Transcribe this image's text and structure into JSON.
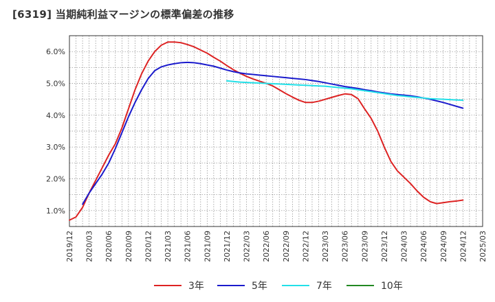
{
  "title": "[6319]  当期純利益マージンの標準偏差の推移",
  "chart_data": {
    "type": "line",
    "title": "[6319]  当期純利益マージンの標準偏差の推移",
    "xlabel": "",
    "ylabel": "",
    "x_ticks": [
      "2019/12",
      "2020/03",
      "2020/06",
      "2020/09",
      "2020/12",
      "2021/03",
      "2021/06",
      "2021/09",
      "2021/12",
      "2022/03",
      "2022/06",
      "2022/09",
      "2022/12",
      "2023/03",
      "2023/06",
      "2023/09",
      "2023/12",
      "2024/03",
      "2024/06",
      "2024/09",
      "2024/12",
      "2025/03"
    ],
    "y_ticks": [
      "1.0%",
      "2.0%",
      "3.0%",
      "4.0%",
      "5.0%",
      "6.0%"
    ],
    "ylim": [
      0.5,
      6.5
    ],
    "y_unit": "%",
    "grid": true,
    "legend_position": "bottom",
    "series": [
      {
        "name": "3年",
        "color": "#dd2222",
        "points": [
          [
            "2019/12",
            0.7
          ],
          [
            "2020/01",
            0.8
          ],
          [
            "2020/02",
            1.1
          ],
          [
            "2020/03",
            1.55
          ],
          [
            "2020/04",
            1.95
          ],
          [
            "2020/05",
            2.35
          ],
          [
            "2020/06",
            2.75
          ],
          [
            "2020/07",
            3.1
          ],
          [
            "2020/08",
            3.6
          ],
          [
            "2020/09",
            4.2
          ],
          [
            "2020/10",
            4.8
          ],
          [
            "2020/11",
            5.3
          ],
          [
            "2020/12",
            5.7
          ],
          [
            "2021/01",
            6.0
          ],
          [
            "2021/02",
            6.2
          ],
          [
            "2021/03",
            6.3
          ],
          [
            "2021/04",
            6.3
          ],
          [
            "2021/05",
            6.28
          ],
          [
            "2021/06",
            6.22
          ],
          [
            "2021/07",
            6.15
          ],
          [
            "2021/08",
            6.05
          ],
          [
            "2021/09",
            5.95
          ],
          [
            "2021/10",
            5.82
          ],
          [
            "2021/11",
            5.7
          ],
          [
            "2021/12",
            5.56
          ],
          [
            "2022/01",
            5.43
          ],
          [
            "2022/02",
            5.32
          ],
          [
            "2022/03",
            5.22
          ],
          [
            "2022/04",
            5.14
          ],
          [
            "2022/05",
            5.07
          ],
          [
            "2022/06",
            5.0
          ],
          [
            "2022/07",
            4.92
          ],
          [
            "2022/08",
            4.8
          ],
          [
            "2022/09",
            4.68
          ],
          [
            "2022/10",
            4.57
          ],
          [
            "2022/11",
            4.47
          ],
          [
            "2022/12",
            4.4
          ],
          [
            "2023/01",
            4.4
          ],
          [
            "2023/02",
            4.44
          ],
          [
            "2023/03",
            4.5
          ],
          [
            "2023/04",
            4.56
          ],
          [
            "2023/05",
            4.62
          ],
          [
            "2023/06",
            4.67
          ],
          [
            "2023/07",
            4.65
          ],
          [
            "2023/08",
            4.52
          ],
          [
            "2023/09",
            4.2
          ],
          [
            "2023/10",
            3.9
          ],
          [
            "2023/11",
            3.5
          ],
          [
            "2023/12",
            3.0
          ],
          [
            "2024/01",
            2.55
          ],
          [
            "2024/02",
            2.25
          ],
          [
            "2024/03",
            2.05
          ],
          [
            "2024/04",
            1.85
          ],
          [
            "2024/05",
            1.62
          ],
          [
            "2024/06",
            1.42
          ],
          [
            "2024/07",
            1.28
          ],
          [
            "2024/08",
            1.22
          ],
          [
            "2024/09",
            1.25
          ],
          [
            "2024/10",
            1.28
          ],
          [
            "2024/11",
            1.3
          ],
          [
            "2024/12",
            1.33
          ]
        ]
      },
      {
        "name": "5年",
        "color": "#1a1acc",
        "points": [
          [
            "2020/02",
            1.2
          ],
          [
            "2020/03",
            1.55
          ],
          [
            "2020/04",
            1.85
          ],
          [
            "2020/05",
            2.15
          ],
          [
            "2020/06",
            2.5
          ],
          [
            "2020/07",
            2.95
          ],
          [
            "2020/08",
            3.45
          ],
          [
            "2020/09",
            3.95
          ],
          [
            "2020/10",
            4.4
          ],
          [
            "2020/11",
            4.8
          ],
          [
            "2020/12",
            5.15
          ],
          [
            "2021/01",
            5.4
          ],
          [
            "2021/02",
            5.52
          ],
          [
            "2021/03",
            5.58
          ],
          [
            "2021/04",
            5.62
          ],
          [
            "2021/05",
            5.65
          ],
          [
            "2021/06",
            5.66
          ],
          [
            "2021/07",
            5.65
          ],
          [
            "2021/08",
            5.62
          ],
          [
            "2021/09",
            5.58
          ],
          [
            "2021/10",
            5.54
          ],
          [
            "2021/11",
            5.48
          ],
          [
            "2021/12",
            5.42
          ],
          [
            "2022/01",
            5.37
          ],
          [
            "2022/02",
            5.33
          ],
          [
            "2022/03",
            5.3
          ],
          [
            "2022/04",
            5.28
          ],
          [
            "2022/05",
            5.26
          ],
          [
            "2022/06",
            5.24
          ],
          [
            "2022/07",
            5.22
          ],
          [
            "2022/08",
            5.2
          ],
          [
            "2022/09",
            5.18
          ],
          [
            "2022/10",
            5.16
          ],
          [
            "2022/11",
            5.14
          ],
          [
            "2022/12",
            5.12
          ],
          [
            "2023/01",
            5.09
          ],
          [
            "2023/02",
            5.06
          ],
          [
            "2023/03",
            5.02
          ],
          [
            "2023/04",
            4.98
          ],
          [
            "2023/05",
            4.94
          ],
          [
            "2023/06",
            4.9
          ],
          [
            "2023/07",
            4.87
          ],
          [
            "2023/08",
            4.84
          ],
          [
            "2023/09",
            4.8
          ],
          [
            "2023/10",
            4.77
          ],
          [
            "2023/11",
            4.73
          ],
          [
            "2023/12",
            4.7
          ],
          [
            "2024/01",
            4.67
          ],
          [
            "2024/02",
            4.65
          ],
          [
            "2024/03",
            4.63
          ],
          [
            "2024/04",
            4.61
          ],
          [
            "2024/05",
            4.58
          ],
          [
            "2024/06",
            4.54
          ],
          [
            "2024/07",
            4.5
          ],
          [
            "2024/08",
            4.45
          ],
          [
            "2024/09",
            4.4
          ],
          [
            "2024/10",
            4.34
          ],
          [
            "2024/11",
            4.28
          ],
          [
            "2024/12",
            4.22
          ]
        ]
      },
      {
        "name": "7年",
        "color": "#22e0e8",
        "points": [
          [
            "2021/12",
            5.08
          ],
          [
            "2022/01",
            5.06
          ],
          [
            "2022/02",
            5.04
          ],
          [
            "2022/03",
            5.03
          ],
          [
            "2022/04",
            5.02
          ],
          [
            "2022/05",
            5.01
          ],
          [
            "2022/06",
            5.0
          ],
          [
            "2022/07",
            4.99
          ],
          [
            "2022/08",
            4.98
          ],
          [
            "2022/09",
            4.97
          ],
          [
            "2022/10",
            4.96
          ],
          [
            "2022/11",
            4.95
          ],
          [
            "2022/12",
            4.94
          ],
          [
            "2023/01",
            4.93
          ],
          [
            "2023/02",
            4.92
          ],
          [
            "2023/03",
            4.91
          ],
          [
            "2023/04",
            4.89
          ],
          [
            "2023/05",
            4.87
          ],
          [
            "2023/06",
            4.85
          ],
          [
            "2023/07",
            4.83
          ],
          [
            "2023/08",
            4.8
          ],
          [
            "2023/09",
            4.77
          ],
          [
            "2023/10",
            4.74
          ],
          [
            "2023/11",
            4.71
          ],
          [
            "2023/12",
            4.68
          ],
          [
            "2024/01",
            4.65
          ],
          [
            "2024/02",
            4.62
          ],
          [
            "2024/03",
            4.6
          ],
          [
            "2024/04",
            4.58
          ],
          [
            "2024/05",
            4.56
          ],
          [
            "2024/06",
            4.54
          ],
          [
            "2024/07",
            4.52
          ],
          [
            "2024/08",
            4.51
          ],
          [
            "2024/09",
            4.5
          ],
          [
            "2024/10",
            4.49
          ],
          [
            "2024/11",
            4.48
          ],
          [
            "2024/12",
            4.47
          ]
        ]
      },
      {
        "name": "10年",
        "color": "#228822",
        "points": []
      }
    ]
  }
}
